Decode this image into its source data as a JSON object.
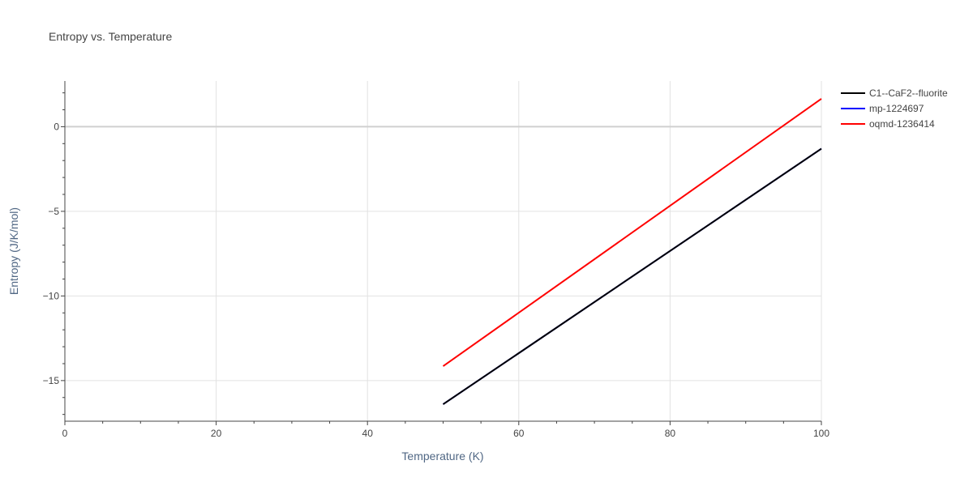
{
  "chart_data": {
    "type": "line",
    "title": "Entropy vs. Temperature",
    "xlabel": "Temperature (K)",
    "ylabel": "Entropy (J/K/mol)",
    "xlim": [
      0,
      100
    ],
    "ylim": [
      -17.4,
      2.7
    ],
    "x_ticks": [
      0,
      20,
      40,
      60,
      80,
      100
    ],
    "y_ticks": [
      0,
      -5,
      -10,
      -15
    ],
    "y_tick_labels": [
      "0",
      "−5",
      "−10",
      "−15"
    ],
    "grid": true,
    "legend_position": "top-right",
    "series": [
      {
        "name": "C1--CaF2--fluorite",
        "color": "#000000",
        "x": [
          50,
          100
        ],
        "y": [
          -16.4,
          -1.3
        ]
      },
      {
        "name": "mp-1224697",
        "color": "#0000ff",
        "x": [
          50,
          100
        ],
        "y": [
          -16.4,
          -1.3
        ]
      },
      {
        "name": "oqmd-1236414",
        "color": "#ff0000",
        "x": [
          50,
          100
        ],
        "y": [
          -14.15,
          1.65
        ]
      }
    ]
  }
}
